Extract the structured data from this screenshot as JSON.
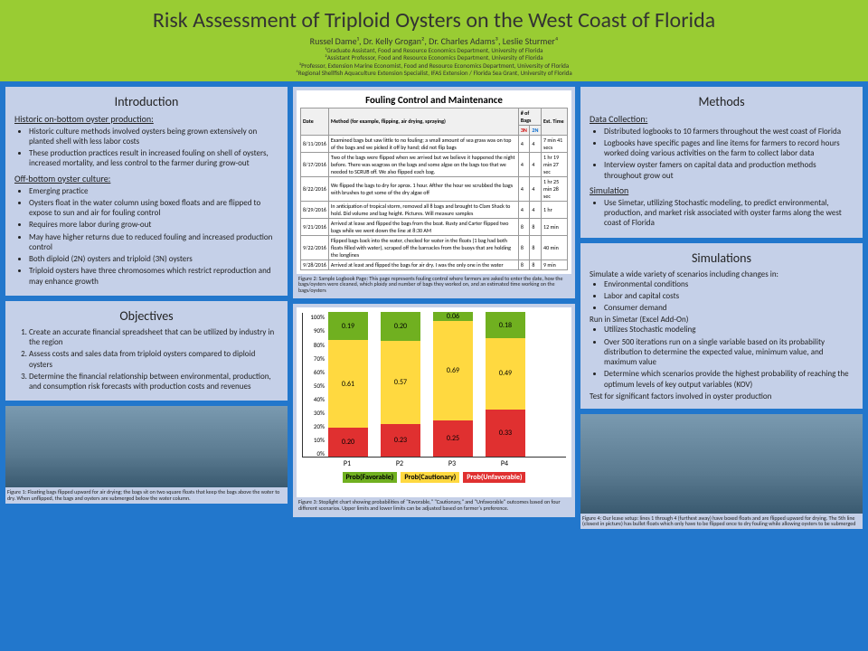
{
  "header": {
    "title": "Risk Assessment of Triploid Oysters on the West Coast of Florida",
    "authors": "Russel Dame¹, Dr. Kelly Grogan², Dr. Charles Adams³, Leslie Sturmer⁴",
    "affil1": "¹Graduate Assistant, Food and Resource Economics Department, University of Florida",
    "affil2": "²Assistant Professor, Food and Resource Economics Department, University of Florida",
    "affil3": "³Professor, Extension Marine Economist, Food and Resource Economics Department, University of Florida",
    "affil4": "⁴Regional Shellfish Aquaculture Extension Specialist, IFAS Extension / Florida Sea Grant, University of Florida"
  },
  "intro": {
    "title": "Introduction",
    "sub1": "Historic on-bottom oyster production:",
    "b1": "Historic culture methods involved oysters being grown extensively on planted shell with less labor costs",
    "b2": "These production practices result in increased fouling on shell of oysters, increased mortality, and less control to the farmer during grow-out",
    "sub2": "Off-bottom oyster culture:",
    "b3": "Emerging practice",
    "b4": "Oysters float in the water column using boxed floats and are flipped to expose to sun and air for fouling control",
    "b5": "Requires more labor during grow-out",
    "b6": "May have higher returns due to reduced fouling and increased production control",
    "b7": "Both diploid (2N) oysters and triploid (3N) oysters",
    "b8": "Triploid oysters have three chromosomes which restrict reproduction and may enhance growth"
  },
  "obj": {
    "title": "Objectives",
    "o1": "Create an accurate financial spreadsheet that can be utilized by industry in the region",
    "o2": "Assess costs and sales data from triploid oysters compared to diploid oysters",
    "o3": "Determine the financial relationship between environmental, production, and consumption risk forecasts with production costs and revenues"
  },
  "fig1cap": "Figure 1: Floating bags flipped upward for air drying; the bags sit on two square floats that keep the bags above the water to dry. When unflipped, the bags and oysters are submerged below the water column.",
  "table": {
    "title": "Fouling Control and Maintenance",
    "h_date": "Date",
    "h_method": "Method (for example, flipping, air drying, spraying)",
    "h_bags": "# of Bags",
    "h_3n": "3N",
    "h_2n": "2N",
    "h_time": "Est. Time",
    "rows": [
      {
        "d": "8/11/2016",
        "m": "Examined bags but saw little to no fouling; a small amount of sea grass was on top of the bags and we picked it off by hand; did not flip bags",
        "n3": "4",
        "n2": "4",
        "t": "7 min 41 secs"
      },
      {
        "d": "8/17/2016",
        "m": "Two of the bags were flipped when we arrived but we believe it happened the night before. There was seagrass on the bags and some algae on the bags too that we needed to SCRUB off. We also flipped each bag.",
        "n3": "4",
        "n2": "4",
        "t": "1 hr 19 min 27 sec"
      },
      {
        "d": "8/22/2016",
        "m": "We flipped the bags to dry for aprox. 1 hour. Afther the hour we scrubbed the bags with brushes to get some of the dry algae off",
        "n3": "4",
        "n2": "4",
        "t": "1 hr 25 min 28 sec"
      },
      {
        "d": "8/29/2016",
        "m": "In anticipation of tropical storm, removed all 8 bags and brought to Clam Shack to hold. Did volume and bag height. Pictures. Will measure samples",
        "n3": "4",
        "n2": "4",
        "t": "1 hr"
      },
      {
        "d": "9/21/2016",
        "m": "Arrived at lease and flipped the bags from the boat. Rusty and Carter flipped two bags while we went down the line at 8:30 AM",
        "n3": "8",
        "n2": "8",
        "t": "12 min"
      },
      {
        "d": "9/22/2016",
        "m": "Flipped bags back into the water, checked for water in the floats (1 bag had both floats filled with water), scraped off the barnacles from the buoys that are holding the longlines",
        "n3": "8",
        "n2": "8",
        "t": "40 min"
      },
      {
        "d": "9/28/2016",
        "m": "Arrived at least and flipped the bags for air dry. I was the only one in the water",
        "n3": "8",
        "n2": "8",
        "t": "9 min"
      }
    ]
  },
  "fig2cap": "Figure 2: Sample Logbook Page: This page represents fouling control where farmers are asked to enter the date, how the bags/oysters were cleaned, which ploidy and number of bags they worked on, and an estimated time working on the bags/oysters",
  "chart": {
    "ylabels": [
      "0%",
      "10%",
      "20%",
      "30%",
      "40%",
      "50%",
      "60%",
      "70%",
      "80%",
      "90%",
      "100%"
    ],
    "bars": [
      {
        "x": "P1",
        "r": 0.2,
        "y": 0.61,
        "g": 0.19
      },
      {
        "x": "P2",
        "r": 0.23,
        "y": 0.57,
        "g": 0.2
      },
      {
        "x": "P3",
        "r": 0.25,
        "y": 0.69,
        "g": 0.06
      },
      {
        "x": "P4",
        "r": 0.33,
        "y": 0.49,
        "g": 0.18
      }
    ],
    "leg_g": "Prob(Favorable)",
    "leg_y": "Prob(Cautionary)",
    "leg_r": "Prob(Unfavorable)",
    "colors": {
      "r": "#e03030",
      "y": "#ffd940",
      "g": "#70b020"
    }
  },
  "fig3cap": "Figure 3: Stoplight chart showing probabilities of \"Favorable,\" \"Cautionary,\" and \"Unfavorable\" outcomes based on four different scenarios. Upper limits and lower limits can be adjusted based on farmer's preference.",
  "methods": {
    "title": "Methods",
    "sub1": "Data Collection:",
    "m1": "Distributed logbooks to 10 farmers throughout the west coast of Florida",
    "m2": "Logbooks have specific pages and line items for farmers to record hours worked doing various activities on the farm to collect labor data",
    "m3": "Interview oyster famers on capital data and production methods throughout grow out",
    "sub2": "Simulation",
    "m4": "Use Simetar, utilizing Stochastic modeling, to predict environmental, production, and market risk associated with oyster farms along the west coast of Florida"
  },
  "sim": {
    "title": "Simulations",
    "lead": "Simulate a wide variety of scenarios including changes in:",
    "s1": "Environmental conditions",
    "s2": "Labor and capital costs",
    "s3": "Consumer demand",
    "lead2": "Run in Simetar (Excel Add-On)",
    "s4": "Utilizes Stochastic modeling",
    "s5": "Over 500 iterations run on a single variable based on its probability distribution to determine the expected value, minimum value, and maximum value",
    "s6": "Determine which scenarios provide the highest probability of reaching the optimum levels of key output variables (KOV)",
    "tail": "Test for significant factors involved in oyster production"
  },
  "fig4cap": "Figure 4: Our lease setup: lines 1 through 4 (furthest away) have boxed floats and are flipped upward for drying. The 5th line (closest in picture) has bullet floats which only have to be flipped once to dry fouling while allowing oysters to be submerged"
}
